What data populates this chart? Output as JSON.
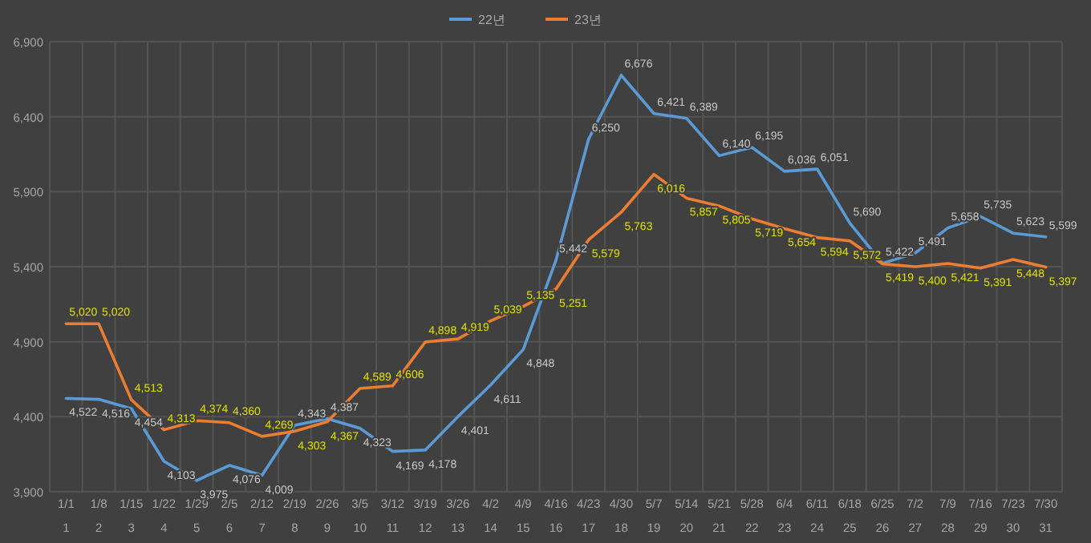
{
  "chart_data": {
    "type": "line",
    "categories": [
      "1/1\n1",
      "1/8\n2",
      "1/15\n3",
      "1/22\n4",
      "1/29\n5",
      "2/5\n6",
      "2/12\n7",
      "2/19\n8",
      "2/26\n9",
      "3/5\n10",
      "3/12\n11",
      "3/19\n12",
      "3/26\n13",
      "4/2\n14",
      "4/9\n15",
      "4/16\n16",
      "4/23\n17",
      "4/30\n18",
      "5/7\n19",
      "5/14\n20",
      "5/21\n21",
      "5/28\n22",
      "6/4\n23",
      "6/11\n24",
      "6/18\n25",
      "6/25\n26",
      "7/2\n27",
      "7/9\n28",
      "7/16\n29",
      "7/23\n30",
      "7/30\n31"
    ],
    "series": [
      {
        "name": "22년",
        "color": "#5b9bd5",
        "values": [
          4522,
          4516,
          4454,
          4103,
          3975,
          4076,
          4009,
          4343,
          4387,
          4323,
          4169,
          4178,
          4401,
          4611,
          4848,
          5442,
          6250,
          6676,
          6421,
          6389,
          6140,
          6195,
          6036,
          6051,
          5690,
          5422,
          5491,
          5658,
          5735,
          5623,
          5599
        ],
        "value_labels": [
          "4,522",
          "4,516",
          "4,454",
          "4,103",
          "3,975",
          "4,076",
          "4,009",
          "4,343",
          "4,387",
          "4,323",
          "4,169",
          "4,178",
          "4,401",
          "4,611",
          "4,848",
          "5,442",
          "6,250",
          "6,676",
          "6,421",
          "6,389",
          "6,140",
          "6,195",
          "6,036",
          "6,051",
          "5,690",
          "5,422",
          "5,491",
          "5,658",
          "5,735",
          "5,623",
          "5,599"
        ]
      },
      {
        "name": "23년",
        "color": "#ed7d31",
        "values": [
          5020,
          5020,
          4513,
          4313,
          4374,
          4360,
          4269,
          4303,
          4367,
          4589,
          4606,
          4898,
          4919,
          5039,
          5135,
          5251,
          5579,
          5763,
          6016,
          5857,
          5805,
          5719,
          5654,
          5594,
          5572,
          5419,
          5400,
          5421,
          5391,
          5448,
          5397
        ],
        "value_labels": [
          "5,020",
          "5,020",
          "4,513",
          "4,313",
          "4,374",
          "4,360",
          "4,269",
          "4,303",
          "4,367",
          "4,589",
          "4,606",
          "4,898",
          "4,919",
          "5,039",
          "5,135",
          "5,251",
          "5,579",
          "5,763",
          "6,016",
          "5,857",
          "5,805",
          "5,719",
          "5,654",
          "5,594",
          "5,572",
          "5,419",
          "5,400",
          "5,421",
          "5,391",
          "5,448",
          "5,397"
        ]
      }
    ],
    "ylim": [
      3900,
      6900
    ],
    "yticks": [
      {
        "value": 3900,
        "label": "3,900"
      },
      {
        "value": 4400,
        "label": "4,400"
      },
      {
        "value": 4900,
        "label": "4,900"
      },
      {
        "value": 5400,
        "label": "5,400"
      },
      {
        "value": 5900,
        "label": "5,900"
      },
      {
        "value": 6400,
        "label": "6,400"
      },
      {
        "value": 6900,
        "label": "6,900"
      }
    ],
    "grid": true,
    "legend": "top"
  }
}
